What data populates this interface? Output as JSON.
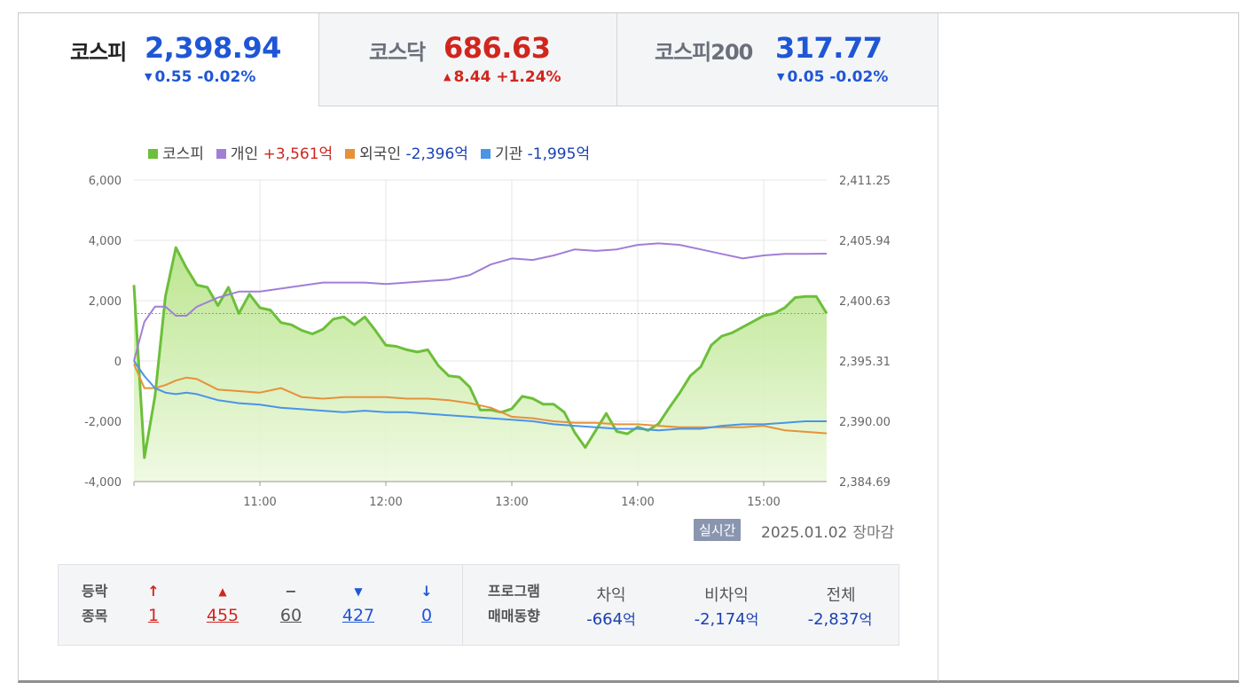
{
  "tabs": [
    {
      "name": "코스피",
      "value": "2,398.94",
      "change_arrow": "▼",
      "change": "0.55 -0.02%",
      "direction": "down",
      "active": true
    },
    {
      "name": "코스닥",
      "value": "686.63",
      "change_arrow": "▲",
      "change": "8.44 +1.24%",
      "direction": "up",
      "active": false
    },
    {
      "name": "코스피200",
      "value": "317.77",
      "change_arrow": "▼",
      "change": "0.05 -0.02%",
      "direction": "down",
      "active": false
    }
  ],
  "colors": {
    "kospi_line": "#6cbf3a",
    "individual_line": "#a27ed6",
    "foreign_line": "#e6913a",
    "institution_line": "#4a94e8",
    "down": "#1f56d6",
    "up": "#d0261e"
  },
  "legend": [
    {
      "label": "코스피",
      "value": "",
      "color": "#6cbf3a"
    },
    {
      "label": "개인",
      "value": "+3,561억",
      "color": "#a27ed6",
      "tone": "up"
    },
    {
      "label": "외국인",
      "value": "-2,396억",
      "color": "#e6913a",
      "tone": "down"
    },
    {
      "label": "기관",
      "value": "-1,995억",
      "color": "#4a94e8",
      "tone": "down"
    }
  ],
  "chart_data": {
    "type": "line",
    "x_ticks": [
      "11:00",
      "12:00",
      "13:00",
      "14:00",
      "15:00"
    ],
    "x_range": [
      "10:00",
      "15:30"
    ],
    "y_left_ticks": [
      "6,000",
      "4,000",
      "2,000",
      "0",
      "-2,000",
      "-4,000"
    ],
    "y_left_range": [
      -4000,
      6000
    ],
    "y_right_ticks": [
      "2,411.25",
      "2,405.94",
      "2,400.63",
      "2,395.31",
      "2,390.00",
      "2,384.69"
    ],
    "y_right_range": [
      2384.69,
      2411.25
    ],
    "reference_level": 2399.49,
    "grid": true,
    "series": [
      {
        "name": "코스피",
        "axis": "right",
        "type": "area",
        "color": "#6cbf3a",
        "x": [
          "10:00",
          "10:05",
          "10:10",
          "10:15",
          "10:20",
          "10:25",
          "10:30",
          "10:35",
          "10:40",
          "10:45",
          "10:50",
          "10:55",
          "11:00",
          "11:05",
          "11:10",
          "11:15",
          "11:20",
          "11:25",
          "11:30",
          "11:35",
          "11:40",
          "11:45",
          "11:50",
          "11:55",
          "12:00",
          "12:05",
          "12:10",
          "12:15",
          "12:20",
          "12:25",
          "12:30",
          "12:35",
          "12:40",
          "12:45",
          "12:50",
          "12:55",
          "13:00",
          "13:05",
          "13:10",
          "13:15",
          "13:20",
          "13:25",
          "13:30",
          "13:35",
          "13:40",
          "13:45",
          "13:50",
          "13:55",
          "14:00",
          "14:05",
          "14:10",
          "14:15",
          "14:20",
          "14:25",
          "14:30",
          "14:35",
          "14:40",
          "14:45",
          "14:50",
          "14:55",
          "15:00",
          "15:05",
          "15:10",
          "15:15",
          "15:20",
          "15:25",
          "15:30"
        ],
        "values": [
          2402.0,
          2386.8,
          2392.2,
          2401.0,
          2405.3,
          2403.5,
          2402.0,
          2401.8,
          2400.2,
          2401.8,
          2399.5,
          2401.2,
          2400.0,
          2399.8,
          2398.7,
          2398.5,
          2398.0,
          2397.7,
          2398.1,
          2399.0,
          2399.2,
          2398.5,
          2399.2,
          2398.0,
          2396.7,
          2396.6,
          2396.3,
          2396.1,
          2396.3,
          2394.9,
          2394.0,
          2393.9,
          2393.0,
          2391.0,
          2391.0,
          2390.8,
          2391.1,
          2392.2,
          2392.0,
          2391.5,
          2391.5,
          2390.8,
          2389.0,
          2387.7,
          2389.2,
          2390.7,
          2389.1,
          2388.9,
          2389.5,
          2389.2,
          2389.8,
          2391.2,
          2392.5,
          2394.0,
          2394.8,
          2396.7,
          2397.5,
          2397.8,
          2398.3,
          2398.8,
          2399.3,
          2399.5,
          2400.0,
          2400.9,
          2401.0,
          2401.0,
          2399.5
        ]
      },
      {
        "name": "개인",
        "axis": "left",
        "type": "line",
        "color": "#a27ed6",
        "x": [
          "10:00",
          "10:05",
          "10:10",
          "10:15",
          "10:20",
          "10:25",
          "10:30",
          "10:40",
          "10:50",
          "11:00",
          "11:10",
          "11:20",
          "11:30",
          "11:40",
          "11:50",
          "12:00",
          "12:10",
          "12:20",
          "12:30",
          "12:40",
          "12:50",
          "13:00",
          "13:10",
          "13:20",
          "13:30",
          "13:40",
          "13:50",
          "14:00",
          "14:10",
          "14:20",
          "14:30",
          "14:40",
          "14:50",
          "15:00",
          "15:10",
          "15:20",
          "15:30"
        ],
        "values": [
          0,
          1300,
          1800,
          1800,
          1500,
          1500,
          1800,
          2100,
          2300,
          2300,
          2400,
          2500,
          2600,
          2600,
          2600,
          2550,
          2600,
          2650,
          2700,
          2850,
          3200,
          3400,
          3350,
          3500,
          3700,
          3650,
          3700,
          3850,
          3900,
          3850,
          3700,
          3550,
          3400,
          3500,
          3550,
          3550,
          3560
        ]
      },
      {
        "name": "외국인",
        "axis": "left",
        "type": "line",
        "color": "#e6913a",
        "x": [
          "10:00",
          "10:05",
          "10:10",
          "10:15",
          "10:20",
          "10:25",
          "10:30",
          "10:40",
          "10:50",
          "11:00",
          "11:10",
          "11:20",
          "11:30",
          "11:40",
          "11:50",
          "12:00",
          "12:10",
          "12:20",
          "12:30",
          "12:40",
          "12:50",
          "13:00",
          "13:10",
          "13:20",
          "13:30",
          "13:40",
          "13:50",
          "14:00",
          "14:10",
          "14:20",
          "14:30",
          "14:40",
          "14:50",
          "15:00",
          "15:10",
          "15:20",
          "15:30"
        ],
        "values": [
          -100,
          -900,
          -900,
          -800,
          -650,
          -550,
          -600,
          -950,
          -1000,
          -1050,
          -900,
          -1200,
          -1250,
          -1200,
          -1200,
          -1200,
          -1250,
          -1250,
          -1300,
          -1400,
          -1550,
          -1850,
          -1900,
          -2000,
          -2050,
          -2050,
          -2100,
          -2100,
          -2150,
          -2200,
          -2200,
          -2200,
          -2200,
          -2150,
          -2300,
          -2350,
          -2400
        ]
      },
      {
        "name": "기관",
        "axis": "left",
        "type": "line",
        "color": "#4a94e8",
        "x": [
          "10:00",
          "10:05",
          "10:10",
          "10:15",
          "10:20",
          "10:25",
          "10:30",
          "10:40",
          "10:50",
          "11:00",
          "11:10",
          "11:20",
          "11:30",
          "11:40",
          "11:50",
          "12:00",
          "12:10",
          "12:20",
          "12:30",
          "12:40",
          "12:50",
          "13:00",
          "13:10",
          "13:20",
          "13:30",
          "13:40",
          "13:50",
          "14:00",
          "14:10",
          "14:20",
          "14:30",
          "14:40",
          "14:50",
          "15:00",
          "15:10",
          "15:20",
          "15:30"
        ],
        "values": [
          0,
          -500,
          -900,
          -1050,
          -1100,
          -1050,
          -1100,
          -1300,
          -1400,
          -1450,
          -1550,
          -1600,
          -1650,
          -1700,
          -1650,
          -1700,
          -1700,
          -1750,
          -1800,
          -1850,
          -1900,
          -1950,
          -2000,
          -2100,
          -2150,
          -2200,
          -2250,
          -2250,
          -2300,
          -2250,
          -2250,
          -2150,
          -2100,
          -2100,
          -2050,
          -2000,
          -2000
        ]
      }
    ]
  },
  "footer": {
    "realtime_badge": "실시간",
    "date": "2025.01.02",
    "status": "장마감"
  },
  "breadth": {
    "label_line1": "등락",
    "label_line2": "종목",
    "items": [
      {
        "icon": "↑",
        "count": "1",
        "color": "#d0261e"
      },
      {
        "icon": "▲",
        "count": "455",
        "color": "#d0261e"
      },
      {
        "icon": "−",
        "count": "60",
        "color": "#555555"
      },
      {
        "icon": "▼",
        "count": "427",
        "color": "#1f56d6"
      },
      {
        "icon": "↓",
        "count": "0",
        "color": "#1f56d6"
      }
    ]
  },
  "program": {
    "label_line1": "프로그램",
    "label_line2": "매매동향",
    "columns": [
      {
        "head": "차익",
        "value": "-664",
        "unit": "억"
      },
      {
        "head": "비차익",
        "value": "-2,174",
        "unit": "억"
      },
      {
        "head": "전체",
        "value": "-2,837",
        "unit": "억"
      }
    ]
  }
}
